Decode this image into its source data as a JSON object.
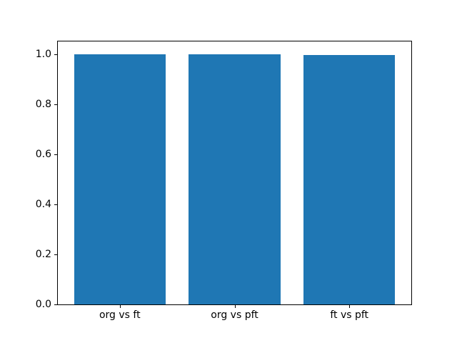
{
  "chart_data": {
    "type": "bar",
    "title": "",
    "xlabel": "",
    "ylabel": "",
    "categories": [
      "org vs ft",
      "org vs pft",
      "ft vs pft"
    ],
    "values": [
      0.998,
      0.998,
      0.996
    ],
    "ylim": [
      0,
      1.05
    ],
    "yticks": [
      0.0,
      0.2,
      0.4,
      0.6,
      0.8,
      1.0
    ],
    "ytick_labels": [
      "0.0",
      "0.2",
      "0.4",
      "0.6",
      "0.8",
      "1.0"
    ],
    "bar_color": "#1f77b4",
    "bar_width_fraction": 0.8,
    "x_margin": 0.05,
    "grid": false,
    "legend": "none",
    "spine_color": "#000000",
    "background_color": "#ffffff"
  }
}
